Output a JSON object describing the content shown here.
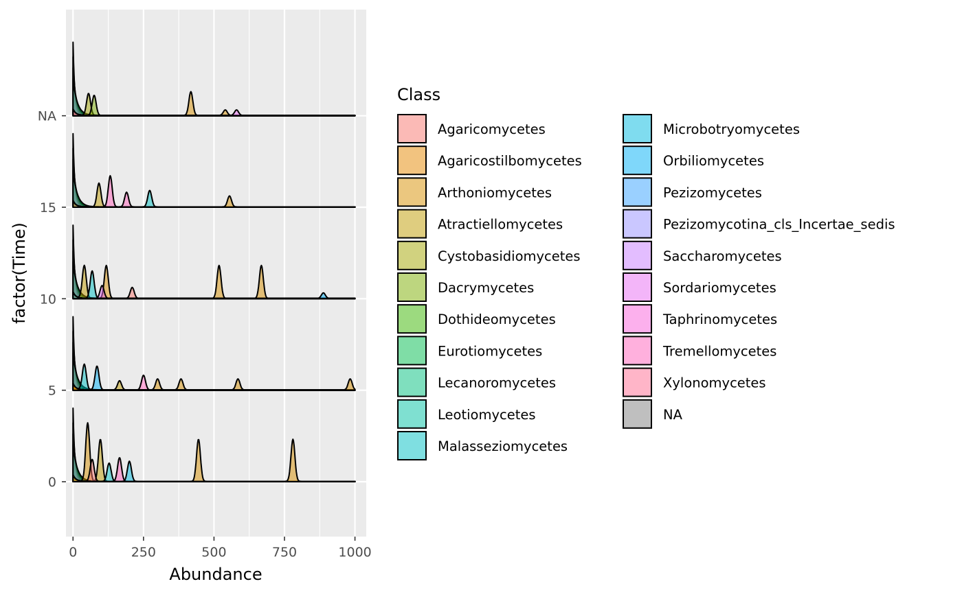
{
  "chart_data": {
    "type": "area",
    "subtype": "ridgeline-density",
    "xlabel": "Abundance",
    "ylabel": "factor(Time)",
    "x_ticks": [
      "0",
      "250",
      "500",
      "750",
      "1000"
    ],
    "x_tick_values": [
      0,
      250,
      500,
      750,
      1000
    ],
    "xlim": [
      -25,
      1040
    ],
    "y_ticks": [
      "0",
      "5",
      "10",
      "15",
      "NA"
    ],
    "y_tick_values": [
      0,
      5,
      10,
      15,
      20
    ],
    "ylim": [
      -3,
      25.8
    ],
    "grid": true,
    "legend": {
      "title": "Class",
      "position": "right",
      "columns": 2,
      "entries": [
        {
          "name": "Agaricomycetes",
          "color": "#F8766D"
        },
        {
          "name": "Agaricostilbomycetes",
          "color": "#E58700"
        },
        {
          "name": "Arthoniomycetes",
          "color": "#D89000"
        },
        {
          "name": "Atractiellomycetes",
          "color": "#C09B00"
        },
        {
          "name": "Cystobasidiomycetes",
          "color": "#A3A500"
        },
        {
          "name": "Dacrymycetes",
          "color": "#7CAE00"
        },
        {
          "name": "Dothideomycetes",
          "color": "#39B600"
        },
        {
          "name": "Eurotiomycetes",
          "color": "#00BB4E"
        },
        {
          "name": "Lecanoromycetes",
          "color": "#00BF7D"
        },
        {
          "name": "Leotiomycetes",
          "color": "#00C1A3"
        },
        {
          "name": "Malasseziomycetes",
          "color": "#00BFC4"
        },
        {
          "name": "Microbotryomycetes",
          "color": "#00BAE0"
        },
        {
          "name": "Orbiliomycetes",
          "color": "#00B0F6"
        },
        {
          "name": "Pezizomycetes",
          "color": "#35A2FF"
        },
        {
          "name": "Pezizomycotina_cls_Incertae_sedis",
          "color": "#9590FF"
        },
        {
          "name": "Saccharomycetes",
          "color": "#C77CFF"
        },
        {
          "name": "Sordariomycetes",
          "color": "#E76BF3"
        },
        {
          "name": "Taphrinomycetes",
          "color": "#FA62DB"
        },
        {
          "name": "Tremellomycetes",
          "color": "#FF62BC"
        },
        {
          "name": "Xylonomycetes",
          "color": "#FF6C91"
        },
        {
          "name": "NA",
          "color": "#808080"
        }
      ]
    },
    "ridges": [
      {
        "time": "0",
        "baseline": 0,
        "peaks": [
          {
            "class": "Arthoniomycetes",
            "x": 52,
            "height": 3.2
          },
          {
            "class": "Atractiellomycetes",
            "x": 97,
            "height": 2.3
          },
          {
            "class": "Agaricomycetes",
            "x": 68,
            "height": 1.2
          },
          {
            "class": "Malasseziomycetes",
            "x": 128,
            "height": 1.0
          },
          {
            "class": "Tremellomycetes",
            "x": 165,
            "height": 1.3
          },
          {
            "class": "Microbotryomycetes",
            "x": 200,
            "height": 1.1
          },
          {
            "class": "Arthoniomycetes",
            "x": 445,
            "height": 2.3
          },
          {
            "class": "Arthoniomycetes",
            "x": 780,
            "height": 2.3
          }
        ]
      },
      {
        "time": "5",
        "baseline": 5,
        "peaks": [
          {
            "class": "Malasseziomycetes",
            "x": 40,
            "height": 1.4
          },
          {
            "class": "Orbiliomycetes",
            "x": 85,
            "height": 1.3
          },
          {
            "class": "Atractiellomycetes",
            "x": 165,
            "height": 0.5
          },
          {
            "class": "Tremellomycetes",
            "x": 250,
            "height": 0.8
          },
          {
            "class": "Arthoniomycetes",
            "x": 300,
            "height": 0.6
          },
          {
            "class": "Arthoniomycetes",
            "x": 383,
            "height": 0.6
          },
          {
            "class": "Arthoniomycetes",
            "x": 585,
            "height": 0.6
          },
          {
            "class": "Arthoniomycetes",
            "x": 983,
            "height": 0.6
          }
        ]
      },
      {
        "time": "10",
        "baseline": 10,
        "peaks": [
          {
            "class": "Atractiellomycetes",
            "x": 40,
            "height": 1.8
          },
          {
            "class": "Malasseziomycetes",
            "x": 68,
            "height": 1.5
          },
          {
            "class": "Arthoniomycetes",
            "x": 118,
            "height": 1.8
          },
          {
            "class": "Sordariomycetes",
            "x": 103,
            "height": 0.7
          },
          {
            "class": "Agaricomycetes",
            "x": 210,
            "height": 0.6
          },
          {
            "class": "Arthoniomycetes",
            "x": 518,
            "height": 1.8
          },
          {
            "class": "Arthoniomycetes",
            "x": 668,
            "height": 1.8
          },
          {
            "class": "Orbiliomycetes",
            "x": 888,
            "height": 0.3
          }
        ]
      },
      {
        "time": "15",
        "baseline": 15,
        "peaks": [
          {
            "class": "Atractiellomycetes",
            "x": 92,
            "height": 1.3
          },
          {
            "class": "Tremellomycetes",
            "x": 132,
            "height": 1.7
          },
          {
            "class": "Tremellomycetes",
            "x": 190,
            "height": 0.8
          },
          {
            "class": "Malasseziomycetes",
            "x": 272,
            "height": 0.9
          },
          {
            "class": "Arthoniomycetes",
            "x": 555,
            "height": 0.6
          }
        ]
      },
      {
        "time": "NA",
        "baseline": 20,
        "peaks": [
          {
            "class": "Cystobasidiomycetes",
            "x": 55,
            "height": 1.2
          },
          {
            "class": "Dacrymycetes",
            "x": 75,
            "height": 1.1
          },
          {
            "class": "Arthoniomycetes",
            "x": 418,
            "height": 1.3
          },
          {
            "class": "Arthoniomycetes",
            "x": 540,
            "height": 0.3
          },
          {
            "class": "Sordariomycetes",
            "x": 580,
            "height": 0.3
          }
        ]
      }
    ]
  }
}
